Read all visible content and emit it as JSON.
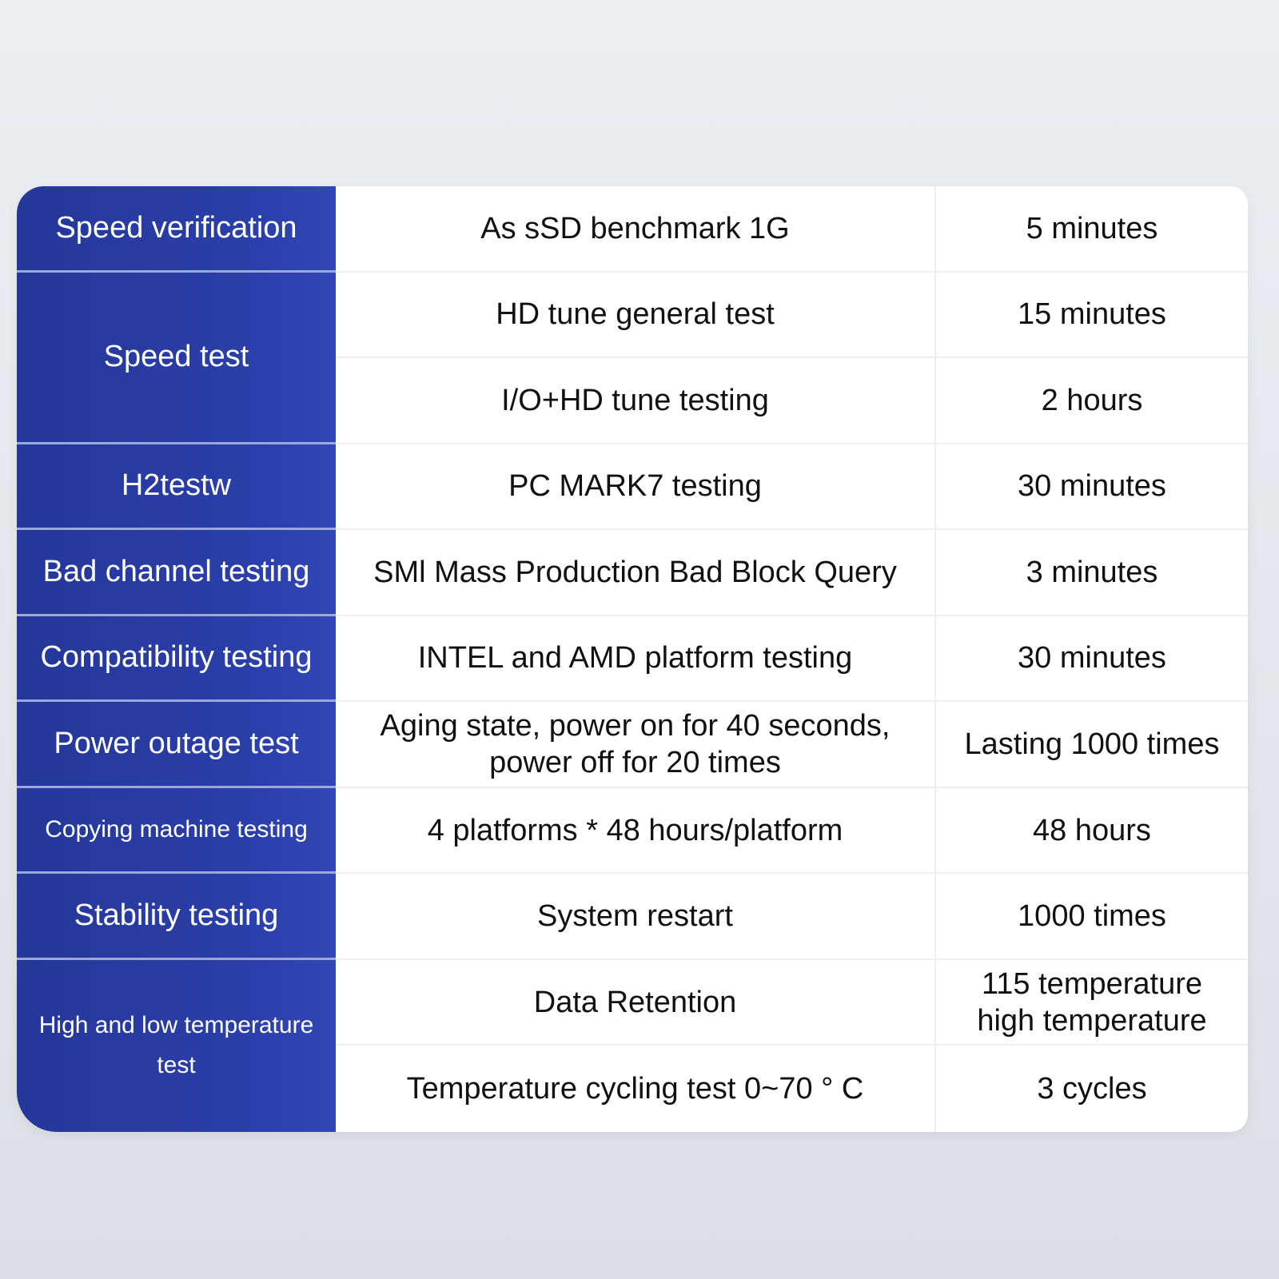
{
  "colors": {
    "label_bg": "#2a3ea8",
    "label_text": "#ffffff",
    "cell_text": "#111111"
  },
  "groups": [
    {
      "label": "Speed verification",
      "span": 1
    },
    {
      "label": "Speed test",
      "span": 2
    },
    {
      "label": "H2testw",
      "span": 1
    },
    {
      "label": "Bad channel testing",
      "span": 1
    },
    {
      "label": "Compatibility testing",
      "span": 1
    },
    {
      "label": "Power outage test",
      "span": 1
    },
    {
      "label": "Copying machine testing",
      "span": 1,
      "small": true
    },
    {
      "label": "Stability testing",
      "span": 1
    },
    {
      "label": "High and low temperature test",
      "span": 2,
      "small": true
    }
  ],
  "rows": [
    {
      "method": "As sSD benchmark 1G",
      "duration": "5 minutes"
    },
    {
      "method": "HD tune general test",
      "duration": "15 minutes"
    },
    {
      "method": "I/O+HD tune testing",
      "duration": "2 hours"
    },
    {
      "method": "PC MARK7 testing",
      "duration": "30 minutes"
    },
    {
      "method": "SMl Mass Production Bad Block Query",
      "duration": "3 minutes"
    },
    {
      "method": "INTEL and AMD platform testing",
      "duration": "30 minutes"
    },
    {
      "method": "Aging state, power on for 40 seconds, power off for 20 times",
      "duration": "Lasting 1000 times"
    },
    {
      "method": "4 platforms * 48 hours/platform",
      "duration": "48 hours"
    },
    {
      "method": "System restart",
      "duration": "1000 times"
    },
    {
      "method": "Data Retention",
      "duration": "115 temperature high temperature"
    },
    {
      "method": "Temperature cycling test 0~70 ° C",
      "duration": "3 cycles"
    }
  ]
}
